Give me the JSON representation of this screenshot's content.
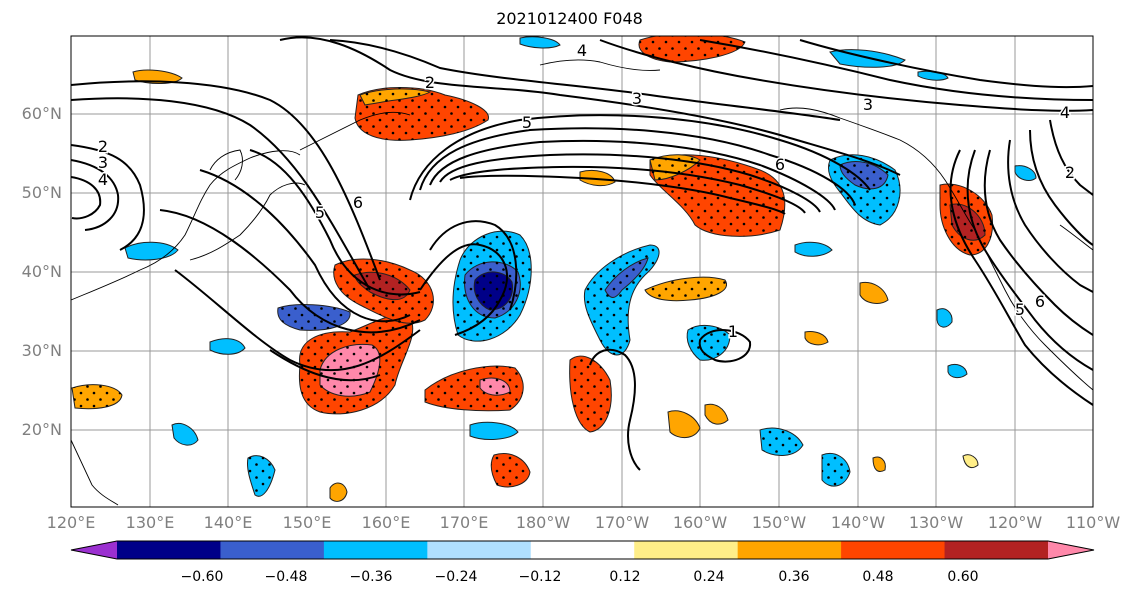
{
  "title": "2021012400 F048",
  "lon_labels": [
    "120°E",
    "130°E",
    "140°E",
    "150°E",
    "160°E",
    "170°E",
    "180°W",
    "170°W",
    "160°W",
    "150°W",
    "140°W",
    "130°W",
    "120°W",
    "110°W"
  ],
  "lat_labels": [
    "60°N",
    "50°N",
    "40°N",
    "30°N",
    "20°N"
  ],
  "contour_labels": [
    "2",
    "3",
    "4",
    "5",
    "6",
    "2",
    "3",
    "4",
    "5",
    "6",
    "1",
    "2",
    "3",
    "4",
    "5",
    "6"
  ],
  "colorbar": {
    "ticks": [
      "−0.60",
      "−0.48",
      "−0.36",
      "−0.24",
      "−0.12",
      "0.12",
      "0.24",
      "0.36",
      "0.48",
      "0.60"
    ],
    "colors": [
      "#9b30d0",
      "#000088",
      "#3a5fcd",
      "#00bfff",
      "#b0e0ff",
      "#ffffff",
      "#ffee88",
      "#ffa500",
      "#ff4500",
      "#b22222",
      "#ff88aa"
    ]
  }
}
